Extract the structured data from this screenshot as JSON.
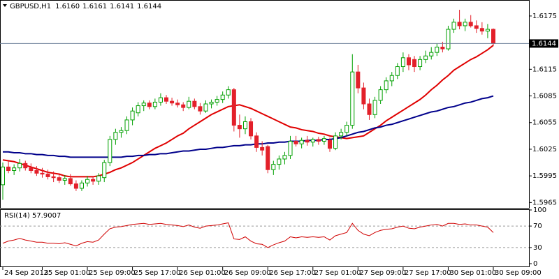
{
  "chart_data": {
    "type": "candlestick",
    "title": "GBPUSD,H1",
    "header_values": [
      "1.6160",
      "1.6161",
      "1.6141",
      "1.6144"
    ],
    "categories": [
      "24 Sep 2013",
      null,
      null,
      null,
      null,
      null,
      null,
      "25 Sep 01:00",
      null,
      null,
      null,
      null,
      null,
      null,
      null,
      "25 Sep 09:00",
      null,
      null,
      null,
      null,
      null,
      null,
      null,
      "25 Sep 17:00",
      null,
      null,
      null,
      null,
      null,
      null,
      null,
      "26 Sep 01:00",
      null,
      null,
      null,
      null,
      null,
      null,
      null,
      "26 Sep 09:00",
      null,
      null,
      null,
      null,
      null,
      null,
      null,
      "26 Sep 17:00",
      null,
      null,
      null,
      null,
      null,
      null,
      null,
      "27 Sep 01:00",
      null,
      null,
      null,
      null,
      null,
      null,
      null,
      "27 Sep 09:00",
      null,
      null,
      null,
      null,
      null,
      null,
      null,
      "27 Sep 17:00",
      null,
      null,
      null,
      null,
      null,
      null,
      null,
      "30 Sep 01:00",
      null,
      null,
      null,
      null,
      null,
      null,
      null,
      "30 Sep 09:00"
    ],
    "open": [
      1.5985,
      1.6005,
      1.6001,
      1.6004,
      1.6009,
      1.6004,
      1.6001,
      1.5998,
      1.5997,
      1.5994,
      1.5993,
      1.599,
      1.5992,
      1.5986,
      1.5981,
      1.5987,
      1.5991,
      1.5989,
      1.5993,
      1.601,
      1.6036,
      1.6044,
      1.6046,
      1.6058,
      1.6066,
      1.6074,
      1.6077,
      1.6073,
      1.6078,
      1.6083,
      1.6079,
      1.6077,
      1.6075,
      1.6072,
      1.6079,
      1.6073,
      1.6068,
      1.6076,
      1.6078,
      1.6081,
      1.6086,
      1.6092,
      1.6052,
      1.6048,
      1.6056,
      1.604,
      1.6027,
      1.6028,
      1.6002,
      1.6008,
      1.6014,
      1.6018,
      1.6034,
      1.6031,
      1.6035,
      1.6033,
      1.6036,
      1.6034,
      1.6035,
      1.6026,
      1.604,
      1.6044,
      1.6052,
      1.6112,
      1.6094,
      1.6076,
      1.6064,
      1.608,
      1.6092,
      1.6102,
      1.6108,
      1.6118,
      1.6128,
      1.6126,
      1.6118,
      1.6126,
      1.613,
      1.6134,
      1.614,
      1.6138,
      1.616,
      1.6168,
      1.6164,
      1.6168,
      1.6164,
      1.6161,
      1.6158,
      1.616
    ],
    "high": [
      1.601,
      1.6012,
      1.6008,
      1.6014,
      1.6012,
      1.6009,
      1.6006,
      1.6004,
      1.6002,
      1.6,
      1.5998,
      1.5996,
      1.5997,
      1.599,
      1.599,
      1.5995,
      1.5994,
      1.5998,
      1.6013,
      1.604,
      1.6048,
      1.605,
      1.6062,
      1.6072,
      1.6078,
      1.608,
      1.608,
      1.6082,
      1.6088,
      1.6086,
      1.6083,
      1.6081,
      1.6078,
      1.6084,
      1.6082,
      1.6077,
      1.608,
      1.6081,
      1.6085,
      1.609,
      1.6096,
      1.6094,
      1.6064,
      1.6062,
      1.606,
      1.6044,
      1.6034,
      1.603,
      1.6012,
      1.6018,
      1.6022,
      1.604,
      1.604,
      1.6038,
      1.604,
      1.6038,
      1.6039,
      1.604,
      1.6038,
      1.6044,
      1.6048,
      1.6056,
      1.6132,
      1.612,
      1.61,
      1.6082,
      1.6084,
      1.6096,
      1.6106,
      1.6112,
      1.6122,
      1.6134,
      1.6132,
      1.613,
      1.613,
      1.6136,
      1.614,
      1.6144,
      1.6146,
      1.6164,
      1.6172,
      1.6182,
      1.6172,
      1.6176,
      1.617,
      1.6168,
      1.6166,
      1.6161
    ],
    "low": [
      1.5968,
      1.5998,
      1.5996,
      1.6,
      1.6001,
      1.5998,
      1.5995,
      1.5993,
      1.5991,
      1.5988,
      1.5987,
      1.5985,
      1.5984,
      1.5978,
      1.5978,
      1.5983,
      1.5985,
      1.5985,
      1.5988,
      1.6006,
      1.603,
      1.6038,
      1.6042,
      1.6052,
      1.6062,
      1.6068,
      1.607,
      1.607,
      1.6074,
      1.6076,
      1.6074,
      1.6072,
      1.6068,
      1.607,
      1.607,
      1.6064,
      1.6066,
      1.6071,
      1.6074,
      1.6077,
      1.6082,
      1.6045,
      1.6038,
      1.6042,
      1.6036,
      1.6022,
      1.6018,
      1.5998,
      1.5996,
      1.6002,
      1.6008,
      1.6014,
      1.6028,
      1.6026,
      1.6029,
      1.6028,
      1.603,
      1.603,
      1.6022,
      1.6024,
      1.6036,
      1.604,
      1.6048,
      1.6088,
      1.607,
      1.6058,
      1.606,
      1.6076,
      1.6088,
      1.6096,
      1.6104,
      1.6112,
      1.6114,
      1.6112,
      1.6114,
      1.6122,
      1.6126,
      1.613,
      1.6134,
      1.6136,
      1.6156,
      1.616,
      1.6158,
      1.6162,
      1.6156,
      1.6154,
      1.615,
      1.6141
    ],
    "close": [
      1.6005,
      1.6001,
      1.6004,
      1.6009,
      1.6004,
      1.6001,
      1.5998,
      1.5997,
      1.5994,
      1.5993,
      1.599,
      1.5992,
      1.5986,
      1.5981,
      1.5987,
      1.5991,
      1.5989,
      1.5995,
      1.601,
      1.6036,
      1.6044,
      1.6046,
      1.6058,
      1.6068,
      1.6074,
      1.6077,
      1.6073,
      1.6078,
      1.6083,
      1.6079,
      1.6077,
      1.6075,
      1.6072,
      1.6079,
      1.6073,
      1.6068,
      1.6076,
      1.6078,
      1.6081,
      1.6086,
      1.6092,
      1.6052,
      1.6048,
      1.6056,
      1.604,
      1.6027,
      1.6024,
      1.6002,
      1.6008,
      1.6014,
      1.6018,
      1.6034,
      1.6031,
      1.6035,
      1.6033,
      1.6036,
      1.6034,
      1.6037,
      1.6026,
      1.604,
      1.6044,
      1.6052,
      1.6112,
      1.6094,
      1.6076,
      1.6064,
      1.608,
      1.6092,
      1.6102,
      1.6108,
      1.6118,
      1.6128,
      1.612,
      1.6118,
      1.6126,
      1.613,
      1.6134,
      1.614,
      1.6138,
      1.616,
      1.6168,
      1.6164,
      1.6168,
      1.6164,
      1.6161,
      1.6158,
      1.616,
      1.6144
    ],
    "bull_color": "#00a000",
    "bear_color": "#e3202a",
    "ylim": [
      1.5959,
      1.6193
    ],
    "yticks": [
      1.5965,
      1.5995,
      1.6025,
      1.6055,
      1.6085,
      1.6115,
      1.6175
    ],
    "price_line": 1.6144,
    "moving_averages": [
      {
        "color": "#e00000",
        "values": [
          1.6013,
          1.6012,
          1.6011,
          1.6009,
          1.6007,
          1.6005,
          1.6003,
          1.6001,
          1.5999,
          1.5998,
          1.5997,
          1.5995,
          1.5994,
          1.5994,
          1.5994,
          1.5994,
          1.5994,
          1.5995,
          1.5997,
          1.5999,
          1.6002,
          1.6004,
          1.6007,
          1.601,
          1.6014,
          1.6018,
          1.6022,
          1.6026,
          1.6029,
          1.6032,
          1.6036,
          1.604,
          1.6043,
          1.6048,
          1.6052,
          1.6056,
          1.606,
          1.6064,
          1.6067,
          1.607,
          1.6073,
          1.6074,
          1.6075,
          1.6073,
          1.6071,
          1.6068,
          1.6065,
          1.6062,
          1.6059,
          1.6056,
          1.6053,
          1.605,
          1.6049,
          1.6047,
          1.6046,
          1.6045,
          1.6043,
          1.6042,
          1.604,
          1.6039,
          1.6038,
          1.6037,
          1.6038,
          1.6039,
          1.604,
          1.6044,
          1.6048,
          1.6052,
          1.6057,
          1.6061,
          1.6065,
          1.6069,
          1.6073,
          1.6077,
          1.6081,
          1.6086,
          1.6092,
          1.6097,
          1.6103,
          1.6108,
          1.6114,
          1.6118,
          1.6122,
          1.6126,
          1.6129,
          1.6133,
          1.6137,
          1.6142
        ]
      },
      {
        "color": "#00008b",
        "values": [
          1.6022,
          1.6022,
          1.6021,
          1.6021,
          1.602,
          1.602,
          1.6019,
          1.6019,
          1.6018,
          1.6018,
          1.6017,
          1.6017,
          1.6016,
          1.6016,
          1.6016,
          1.6016,
          1.6016,
          1.6016,
          1.6016,
          1.6016,
          1.6016,
          1.6016,
          1.6017,
          1.6017,
          1.6018,
          1.6018,
          1.6019,
          1.6019,
          1.602,
          1.602,
          1.6021,
          1.6022,
          1.6023,
          1.6023,
          1.6024,
          1.6025,
          1.6025,
          1.6026,
          1.6027,
          1.6027,
          1.6028,
          1.6029,
          1.6029,
          1.603,
          1.603,
          1.6031,
          1.6031,
          1.6032,
          1.6032,
          1.6033,
          1.6033,
          1.6034,
          1.6034,
          1.6034,
          1.6035,
          1.6035,
          1.6035,
          1.6036,
          1.6036,
          1.6037,
          1.6038,
          1.604,
          1.6042,
          1.6044,
          1.6045,
          1.6047,
          1.6049,
          1.605,
          1.6052,
          1.6053,
          1.6055,
          1.6057,
          1.6059,
          1.6061,
          1.6063,
          1.6065,
          1.6067,
          1.6068,
          1.607,
          1.6072,
          1.6073,
          1.6075,
          1.6077,
          1.6078,
          1.608,
          1.6082,
          1.6083,
          1.6085
        ]
      }
    ],
    "rsi": {
      "title": "RSI(14) 57.9007",
      "color": "#d00000",
      "ylim": [
        0,
        100
      ],
      "yticks": [
        0,
        30,
        70,
        100
      ],
      "levels": [
        30,
        70
      ],
      "values": [
        38,
        42,
        44,
        47,
        44,
        42,
        40,
        40,
        38,
        38,
        37,
        39,
        36,
        33,
        38,
        41,
        40,
        44,
        55,
        65,
        68,
        69,
        71,
        73,
        74,
        75,
        73,
        74,
        75,
        73,
        72,
        71,
        69,
        72,
        68,
        66,
        70,
        71,
        72,
        74,
        76,
        46,
        45,
        50,
        42,
        37,
        36,
        30,
        35,
        39,
        42,
        50,
        48,
        50,
        49,
        50,
        49,
        50,
        44,
        52,
        55,
        58,
        75,
        62,
        55,
        52,
        58,
        62,
        64,
        65,
        68,
        70,
        66,
        65,
        68,
        70,
        72,
        73,
        70,
        75,
        75,
        73,
        74,
        72,
        72,
        70,
        68,
        57.9007
      ]
    }
  }
}
